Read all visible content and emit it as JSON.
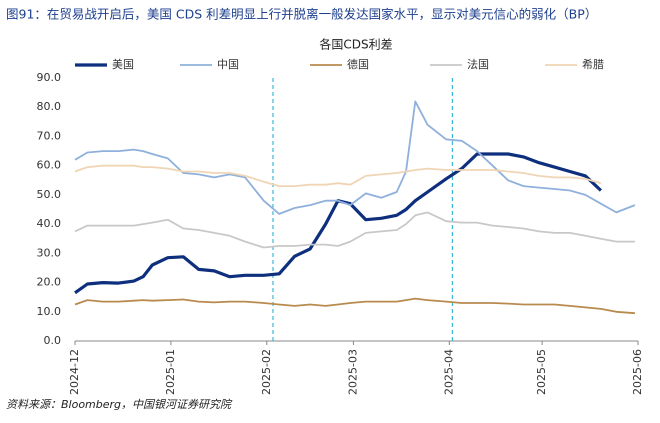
{
  "figure_title": "图91：在贸易战开启后，美国 CDS 利差明显上行并脱离一般发达国家水平，显示对美元信心的弱化（BP）",
  "source": "资料来源：Bloomberg，中国银河证券研究院",
  "chart_data": {
    "type": "line",
    "title": "各国CDS利差",
    "x": [
      0,
      4,
      9,
      14,
      19,
      22,
      25,
      30,
      35,
      40,
      45,
      50,
      55,
      61,
      66,
      71,
      76,
      81,
      85,
      89,
      94,
      99,
      104,
      107,
      110,
      114,
      120,
      125,
      130,
      135,
      140,
      145,
      150,
      155,
      160,
      165,
      170,
      175,
      181
    ],
    "xlim": [
      0,
      182
    ],
    "xticks": [
      {
        "value": 0,
        "label": "2024-12"
      },
      {
        "value": 31,
        "label": "2025-01"
      },
      {
        "value": 62,
        "label": "2025-02"
      },
      {
        "value": 90,
        "label": "2025-03"
      },
      {
        "value": 121,
        "label": "2025-04"
      },
      {
        "value": 151,
        "label": "2025-05"
      },
      {
        "value": 182,
        "label": "2025-06"
      }
    ],
    "ylim": [
      0,
      90
    ],
    "yticks": [
      {
        "value": 0,
        "label": "0.0"
      },
      {
        "value": 10,
        "label": "10.0"
      },
      {
        "value": 20,
        "label": "20.0"
      },
      {
        "value": 30,
        "label": "30.0"
      },
      {
        "value": 40,
        "label": "40.0"
      },
      {
        "value": 50,
        "label": "50.0"
      },
      {
        "value": 60,
        "label": "60.0"
      },
      {
        "value": 70,
        "label": "70.0"
      },
      {
        "value": 80,
        "label": "80.0"
      },
      {
        "value": 90,
        "label": "90.0"
      }
    ],
    "vlines": [
      64,
      122
    ],
    "vline_color": "#3cb8d8",
    "legend": "top",
    "series": [
      {
        "name": "美国",
        "color": "#0d2f7e",
        "width": 3.2,
        "values": [
          16.5,
          19.5,
          20,
          19.8,
          20.5,
          22,
          26,
          28.5,
          28.8,
          24.5,
          24,
          22,
          22.5,
          22.5,
          23,
          29,
          31.5,
          40,
          48,
          47,
          41.5,
          42,
          43,
          45,
          48,
          51,
          55.5,
          59,
          64,
          64,
          64,
          63,
          61,
          59.5,
          58,
          56.5,
          51.5,
          null,
          null
        ]
      },
      {
        "name": "中国",
        "color": "#8fb0dc",
        "width": 1.8,
        "values": [
          62,
          64.5,
          65,
          65,
          65.5,
          65,
          64,
          62.5,
          57.5,
          57,
          56,
          57,
          56,
          48,
          43.5,
          45.5,
          46.5,
          48,
          48,
          46.5,
          50.5,
          49,
          51,
          58,
          82,
          74,
          69,
          68.5,
          65,
          60,
          55,
          53,
          52.5,
          52,
          51.5,
          50,
          47,
          44,
          46.5
        ]
      },
      {
        "name": "德国",
        "color": "#b98a4e",
        "width": 1.8,
        "values": [
          12.5,
          14,
          13.5,
          13.5,
          13.8,
          14,
          13.8,
          14,
          14.2,
          13.5,
          13.2,
          13.5,
          13.5,
          13,
          12.5,
          12,
          12.5,
          12,
          12.5,
          13,
          13.5,
          13.5,
          13.5,
          14,
          14.5,
          14,
          13.5,
          13,
          13,
          13,
          12.8,
          12.5,
          12.5,
          12.5,
          12,
          11.5,
          11,
          10,
          9.5
        ]
      },
      {
        "name": "法国",
        "color": "#c8c8c8",
        "width": 1.8,
        "values": [
          37.5,
          39.5,
          39.5,
          39.5,
          39.5,
          40,
          40.5,
          41.5,
          38.5,
          38,
          37,
          36,
          34,
          32,
          32.5,
          32.5,
          33,
          33,
          32.5,
          34,
          37,
          37.5,
          38,
          40,
          43,
          44,
          41,
          40.5,
          40.5,
          39.5,
          39,
          38.5,
          37.5,
          37,
          37,
          36,
          35,
          34,
          34
        ]
      },
      {
        "name": "希腊",
        "color": "#f0d5b5",
        "width": 1.8,
        "values": [
          58,
          59.5,
          60,
          60,
          60,
          59.5,
          59.5,
          59,
          58,
          58,
          57.5,
          57.5,
          56.5,
          54.5,
          53,
          53,
          53.5,
          53.5,
          54,
          53.5,
          56.5,
          57,
          57.5,
          58,
          58.5,
          59,
          58.5,
          58.5,
          58.5,
          58.5,
          58,
          57.5,
          56.5,
          56,
          56,
          55.5,
          54,
          null,
          null
        ]
      }
    ]
  }
}
